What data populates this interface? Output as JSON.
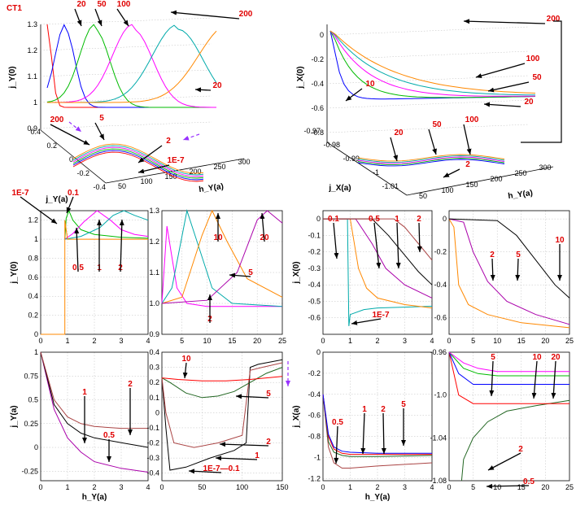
{
  "figure_title": "CT1",
  "series_colors": [
    "#ff0000",
    "#0000ff",
    "#00bb00",
    "#ff00ff",
    "#00aaaa",
    "#ff8800",
    "#aa00aa",
    "#000000",
    "#aa4444",
    "#226622"
  ],
  "chart_data": [
    {
      "type": "line",
      "subtype": "3d-line",
      "panel": "top-left",
      "title": "",
      "zlabel": "j_Y(0)",
      "xlabel": "h_Y(a)",
      "ylabel": "j_Y(a)",
      "z_ticks": [
        "0.9",
        "1",
        "1.1",
        "1.2",
        "1.3"
      ],
      "x_ticks": [
        "-0.4",
        "-0.2",
        "0",
        "0.2",
        "0.4"
      ],
      "y_ticks": [
        "50",
        "100",
        "150",
        "200",
        "250",
        "300"
      ],
      "annotations": [
        "20",
        "50",
        "100",
        "200",
        "20",
        "200",
        "5",
        "2",
        "1E-7"
      ],
      "series": [
        {
          "name": "2",
          "peak_h": 3,
          "peak": 1.3
        },
        {
          "name": "5",
          "peak_h": 6,
          "peak": 1.3
        },
        {
          "name": "20",
          "peak_h": 20,
          "peak": 1.3
        },
        {
          "name": "50",
          "peak_h": 50,
          "peak": 1.3
        },
        {
          "name": "100",
          "peak_h": 100,
          "peak": 1.3
        },
        {
          "name": "200",
          "peak_h": 200,
          "peak": 1.3
        }
      ]
    },
    {
      "type": "line",
      "subtype": "3d-line",
      "panel": "top-right",
      "zlabel": "j_X(0)",
      "xlabel": "h_Y(a)",
      "ylabel": "j_X(a)",
      "z_ticks": [
        "-0.8",
        "-0.6",
        "-0.4",
        "-0.2",
        "0"
      ],
      "x_ticks": [
        "-1.01",
        "-1",
        "-0.99",
        "-0.98",
        "-0.97"
      ],
      "y_ticks": [
        "50",
        "100",
        "150",
        "200",
        "250",
        "300"
      ],
      "annotations": [
        "200",
        "100",
        "50",
        "10",
        "20",
        "20",
        "50",
        "100",
        "2"
      ],
      "series": [
        {
          "name": "10"
        },
        {
          "name": "20"
        },
        {
          "name": "50"
        },
        {
          "name": "100"
        },
        {
          "name": "200"
        }
      ]
    },
    {
      "type": "line",
      "panel": "row2-col1",
      "ylabel": "j_Y(0)",
      "xlabel": "",
      "xlim": [
        0,
        4
      ],
      "ylim": [
        0,
        1.3
      ],
      "x_ticks": [
        "0",
        "1",
        "2",
        "3",
        "4"
      ],
      "y_ticks": [
        "0",
        "0.2",
        "0.4",
        "0.6",
        "0.8",
        "1",
        "1.2"
      ],
      "annotations": [
        "1E-7",
        "0.1",
        "0.5",
        "1",
        "2"
      ],
      "series": [
        {
          "name": "0.5",
          "x": [
            0.9,
            0.95,
            1.05,
            1.2,
            1.5,
            2,
            3,
            4
          ],
          "y": [
            1.0,
            1.22,
            1.3,
            1.2,
            1.1,
            1.05,
            1.02,
            1.01
          ]
        },
        {
          "name": "1",
          "x": [
            0.9,
            1.2,
            1.6,
            2.1,
            2.6,
            3,
            3.5,
            4
          ],
          "y": [
            1.0,
            1.06,
            1.18,
            1.3,
            1.2,
            1.1,
            1.05,
            1.03
          ]
        },
        {
          "name": "2",
          "x": [
            0.9,
            1.5,
            2.2,
            2.7,
            3.1,
            3.5,
            4
          ],
          "y": [
            1.0,
            1.03,
            1.12,
            1.25,
            1.3,
            1.25,
            1.2
          ]
        },
        {
          "name": "1E-7",
          "x": [
            0,
            0.9,
            0.9,
            1,
            2,
            4
          ],
          "y": [
            0,
            0,
            1.2,
            1.0,
            1.0,
            1.0
          ]
        }
      ]
    },
    {
      "type": "line",
      "panel": "row2-col2",
      "xlim": [
        1,
        25
      ],
      "ylim": [
        0.9,
        1.3
      ],
      "x_ticks": [
        "5",
        "10",
        "15",
        "20",
        "25"
      ],
      "y_ticks": [
        "0.9",
        "1.0",
        "1.1",
        "1.2",
        "1.3"
      ],
      "annotations": [
        "10",
        "20",
        "5",
        "2"
      ],
      "series": [
        {
          "name": "2",
          "x": [
            1,
            2,
            3,
            4,
            6,
            10,
            25
          ],
          "y": [
            1.0,
            1.25,
            1.15,
            1.05,
            1.0,
            0.99,
            0.99
          ]
        },
        {
          "name": "5",
          "x": [
            1,
            3,
            6,
            8,
            11,
            15,
            25
          ],
          "y": [
            1.0,
            1.05,
            1.3,
            1.2,
            1.05,
            1.0,
            0.99
          ]
        },
        {
          "name": "10",
          "x": [
            1,
            5,
            9,
            11,
            14,
            18,
            25
          ],
          "y": [
            1.0,
            1.02,
            1.22,
            1.3,
            1.2,
            1.08,
            1.02
          ]
        },
        {
          "name": "20",
          "x": [
            1,
            10,
            16,
            20,
            22,
            25
          ],
          "y": [
            1.0,
            1.01,
            1.1,
            1.27,
            1.3,
            1.26
          ]
        }
      ]
    },
    {
      "type": "line",
      "panel": "row2-col3",
      "ylabel": "j_X(0)",
      "xlim": [
        0,
        4
      ],
      "ylim": [
        -0.7,
        0.05
      ],
      "x_ticks": [
        "0",
        "1",
        "2",
        "3",
        "4"
      ],
      "y_ticks": [
        "-0.6",
        "-0.5",
        "-0.4",
        "-0.3",
        "-0.2",
        "-0.1",
        "0"
      ],
      "annotations": [
        "0.1",
        "0.5",
        "1",
        "2",
        "1E-7"
      ],
      "series": [
        {
          "name": "1E-7",
          "x": [
            0,
            0.9,
            0.95,
            1,
            1.5,
            2,
            4
          ],
          "y": [
            0,
            0,
            -0.65,
            -0.58,
            -0.55,
            -0.54,
            -0.53
          ]
        },
        {
          "name": "0.1",
          "x": [
            0,
            1,
            1.3,
            1.6,
            2,
            3,
            4
          ],
          "y": [
            0,
            0,
            -0.3,
            -0.42,
            -0.48,
            -0.52,
            -0.54
          ]
        },
        {
          "name": "0.5",
          "x": [
            0,
            1.2,
            1.8,
            2.3,
            3,
            4
          ],
          "y": [
            0,
            0,
            -0.15,
            -0.3,
            -0.4,
            -0.48
          ]
        },
        {
          "name": "1",
          "x": [
            0,
            1.8,
            2.4,
            3,
            3.5,
            4
          ],
          "y": [
            0,
            0,
            -0.1,
            -0.22,
            -0.32,
            -0.4
          ]
        },
        {
          "name": "2",
          "x": [
            0,
            2.6,
            3,
            3.5,
            4
          ],
          "y": [
            0,
            0,
            -0.05,
            -0.15,
            -0.25
          ]
        }
      ]
    },
    {
      "type": "line",
      "panel": "row2-col4",
      "xlim": [
        0,
        25
      ],
      "ylim": [
        -0.7,
        0.05
      ],
      "x_ticks": [
        "0",
        "5",
        "10",
        "15",
        "20",
        "25"
      ],
      "y_ticks": [
        "-0.6",
        "-0.4",
        "-0.2",
        "0"
      ],
      "annotations": [
        "10",
        "2",
        "5"
      ],
      "series": [
        {
          "name": "2",
          "x": [
            0,
            1,
            2,
            4,
            8,
            15,
            25
          ],
          "y": [
            0,
            -0.05,
            -0.4,
            -0.52,
            -0.58,
            -0.63,
            -0.66
          ]
        },
        {
          "name": "5",
          "x": [
            0,
            3,
            5,
            8,
            12,
            18,
            25
          ],
          "y": [
            0,
            -0.02,
            -0.2,
            -0.38,
            -0.5,
            -0.58,
            -0.64
          ]
        },
        {
          "name": "10",
          "x": [
            0,
            10,
            14,
            18,
            22,
            25
          ],
          "y": [
            0,
            -0.01,
            -0.1,
            -0.25,
            -0.4,
            -0.48
          ]
        }
      ]
    },
    {
      "type": "line",
      "panel": "row3-col1",
      "ylabel": "j_Y(a)",
      "xlabel": "h_Y(a)",
      "xlim": [
        0,
        4
      ],
      "ylim": [
        -0.35,
        1
      ],
      "x_ticks": [
        "0",
        "1",
        "2",
        "3",
        "4"
      ],
      "y_ticks": [
        "-0.25",
        "0",
        "0.25",
        "0.5",
        "0.75",
        "1"
      ],
      "annotations": [
        "1",
        "2",
        "0.5"
      ],
      "series": [
        {
          "name": "0.5",
          "x": [
            0,
            0.5,
            1,
            1.5,
            2,
            3,
            4
          ],
          "y": [
            1,
            0.4,
            0.1,
            -0.05,
            -0.15,
            -0.22,
            -0.26
          ]
        },
        {
          "name": "1",
          "x": [
            0,
            0.5,
            1,
            1.5,
            2,
            3,
            4
          ],
          "y": [
            1,
            0.45,
            0.25,
            0.15,
            0.1,
            0.05,
            0.0
          ]
        },
        {
          "name": "2",
          "x": [
            0,
            0.5,
            1,
            1.5,
            2,
            3,
            4
          ],
          "y": [
            1,
            0.5,
            0.32,
            0.25,
            0.22,
            0.2,
            0.2
          ]
        }
      ]
    },
    {
      "type": "line",
      "panel": "row3-col2",
      "xlim": [
        0,
        150
      ],
      "ylim": [
        -0.45,
        0.4
      ],
      "x_ticks": [
        "0",
        "50",
        "100",
        "150"
      ],
      "y_ticks": [
        "-0.4",
        "-0.3",
        "-0.2",
        "-0.1",
        "0",
        "0.1",
        "0.2",
        "0.3",
        "0.4"
      ],
      "annotations": [
        "10",
        "5",
        "2",
        "1",
        "1E-7—0.1"
      ],
      "series": [
        {
          "name": "1E-7—0.1",
          "x": [
            0,
            5,
            10,
            30,
            60,
            90,
            105,
            110,
            120,
            150
          ],
          "y": [
            0.23,
            -0.1,
            -0.38,
            -0.36,
            -0.3,
            -0.25,
            -0.2,
            0.3,
            0.32,
            0.35
          ]
        },
        {
          "name": "2",
          "x": [
            0,
            5,
            15,
            40,
            70,
            100,
            110,
            125,
            150
          ],
          "y": [
            0.23,
            0.0,
            -0.2,
            -0.23,
            -0.2,
            -0.15,
            0.28,
            0.3,
            0.33
          ]
        },
        {
          "name": "5",
          "x": [
            0,
            10,
            30,
            50,
            70,
            90,
            110,
            130,
            150
          ],
          "y": [
            0.23,
            0.2,
            0.13,
            0.1,
            0.11,
            0.14,
            0.2,
            0.26,
            0.3
          ]
        },
        {
          "name": "10",
          "x": [
            0,
            20,
            50,
            80,
            110,
            150
          ],
          "y": [
            0.23,
            0.22,
            0.21,
            0.21,
            0.22,
            0.24
          ]
        }
      ]
    },
    {
      "type": "line",
      "panel": "row3-col3",
      "ylabel": "j_X(a)",
      "xlabel": "h_Y(a)",
      "xlim": [
        0,
        4
      ],
      "ylim": [
        -1.22,
        0
      ],
      "x_ticks": [
        "0",
        "1",
        "2",
        "3",
        "4"
      ],
      "y_ticks": [
        "-1.2",
        "-1",
        "-0.8",
        "-0.6",
        "-0.4",
        "-0.2",
        "0"
      ],
      "annotations": [
        "0.5",
        "1",
        "2",
        "5"
      ],
      "series": [
        {
          "name": "0.5",
          "x": [
            0,
            0.2,
            0.4,
            0.7,
            1,
            2,
            4
          ],
          "y": [
            -0.4,
            -0.9,
            -1.05,
            -1.1,
            -1.1,
            -1.08,
            -1.05
          ]
        },
        {
          "name": "1",
          "x": [
            0,
            0.2,
            0.4,
            0.7,
            1,
            2,
            4
          ],
          "y": [
            -0.4,
            -0.85,
            -0.95,
            -0.98,
            -0.99,
            -0.99,
            -0.98
          ]
        },
        {
          "name": "2",
          "x": [
            0,
            0.2,
            0.4,
            0.7,
            1,
            2,
            4
          ],
          "y": [
            -0.4,
            -0.8,
            -0.92,
            -0.96,
            -0.97,
            -0.97,
            -0.97
          ]
        },
        {
          "name": "5",
          "x": [
            0,
            0.2,
            0.4,
            0.7,
            1,
            2,
            4
          ],
          "y": [
            -0.4,
            -0.78,
            -0.9,
            -0.94,
            -0.95,
            -0.96,
            -0.96
          ]
        }
      ]
    },
    {
      "type": "line",
      "panel": "row3-col4",
      "xlim": [
        0,
        25
      ],
      "ylim": [
        -1.08,
        -0.96
      ],
      "x_ticks": [
        "0",
        "5",
        "10",
        "15",
        "20",
        "25"
      ],
      "y_ticks": [
        "-1.08",
        "-1.04",
        "-1.0",
        "-0.96"
      ],
      "annotations": [
        "5",
        "10",
        "20",
        "2",
        "0.5"
      ],
      "series": [
        {
          "name": "0.5",
          "x": [
            2.6,
            3,
            5,
            8,
            12,
            18,
            25
          ],
          "y": [
            -1.08,
            -1.06,
            -1.04,
            -1.025,
            -1.015,
            -1.01,
            -1.005
          ]
        },
        {
          "name": "2",
          "x": [
            0,
            2,
            5,
            10,
            25
          ],
          "y": [
            -0.96,
            -1.0,
            -1.008,
            -1.008,
            -1.008
          ]
        },
        {
          "name": "5",
          "x": [
            0,
            2,
            5,
            8,
            12,
            25
          ],
          "y": [
            -0.96,
            -0.98,
            -0.99,
            -0.99,
            -0.99,
            -0.99
          ]
        },
        {
          "name": "10",
          "x": [
            0,
            3,
            6,
            10,
            25
          ],
          "y": [
            -0.96,
            -0.975,
            -0.98,
            -0.982,
            -0.982
          ]
        },
        {
          "name": "20",
          "x": [
            0,
            3,
            6,
            10,
            25
          ],
          "y": [
            -0.96,
            -0.97,
            -0.975,
            -0.978,
            -0.978
          ]
        }
      ]
    }
  ]
}
